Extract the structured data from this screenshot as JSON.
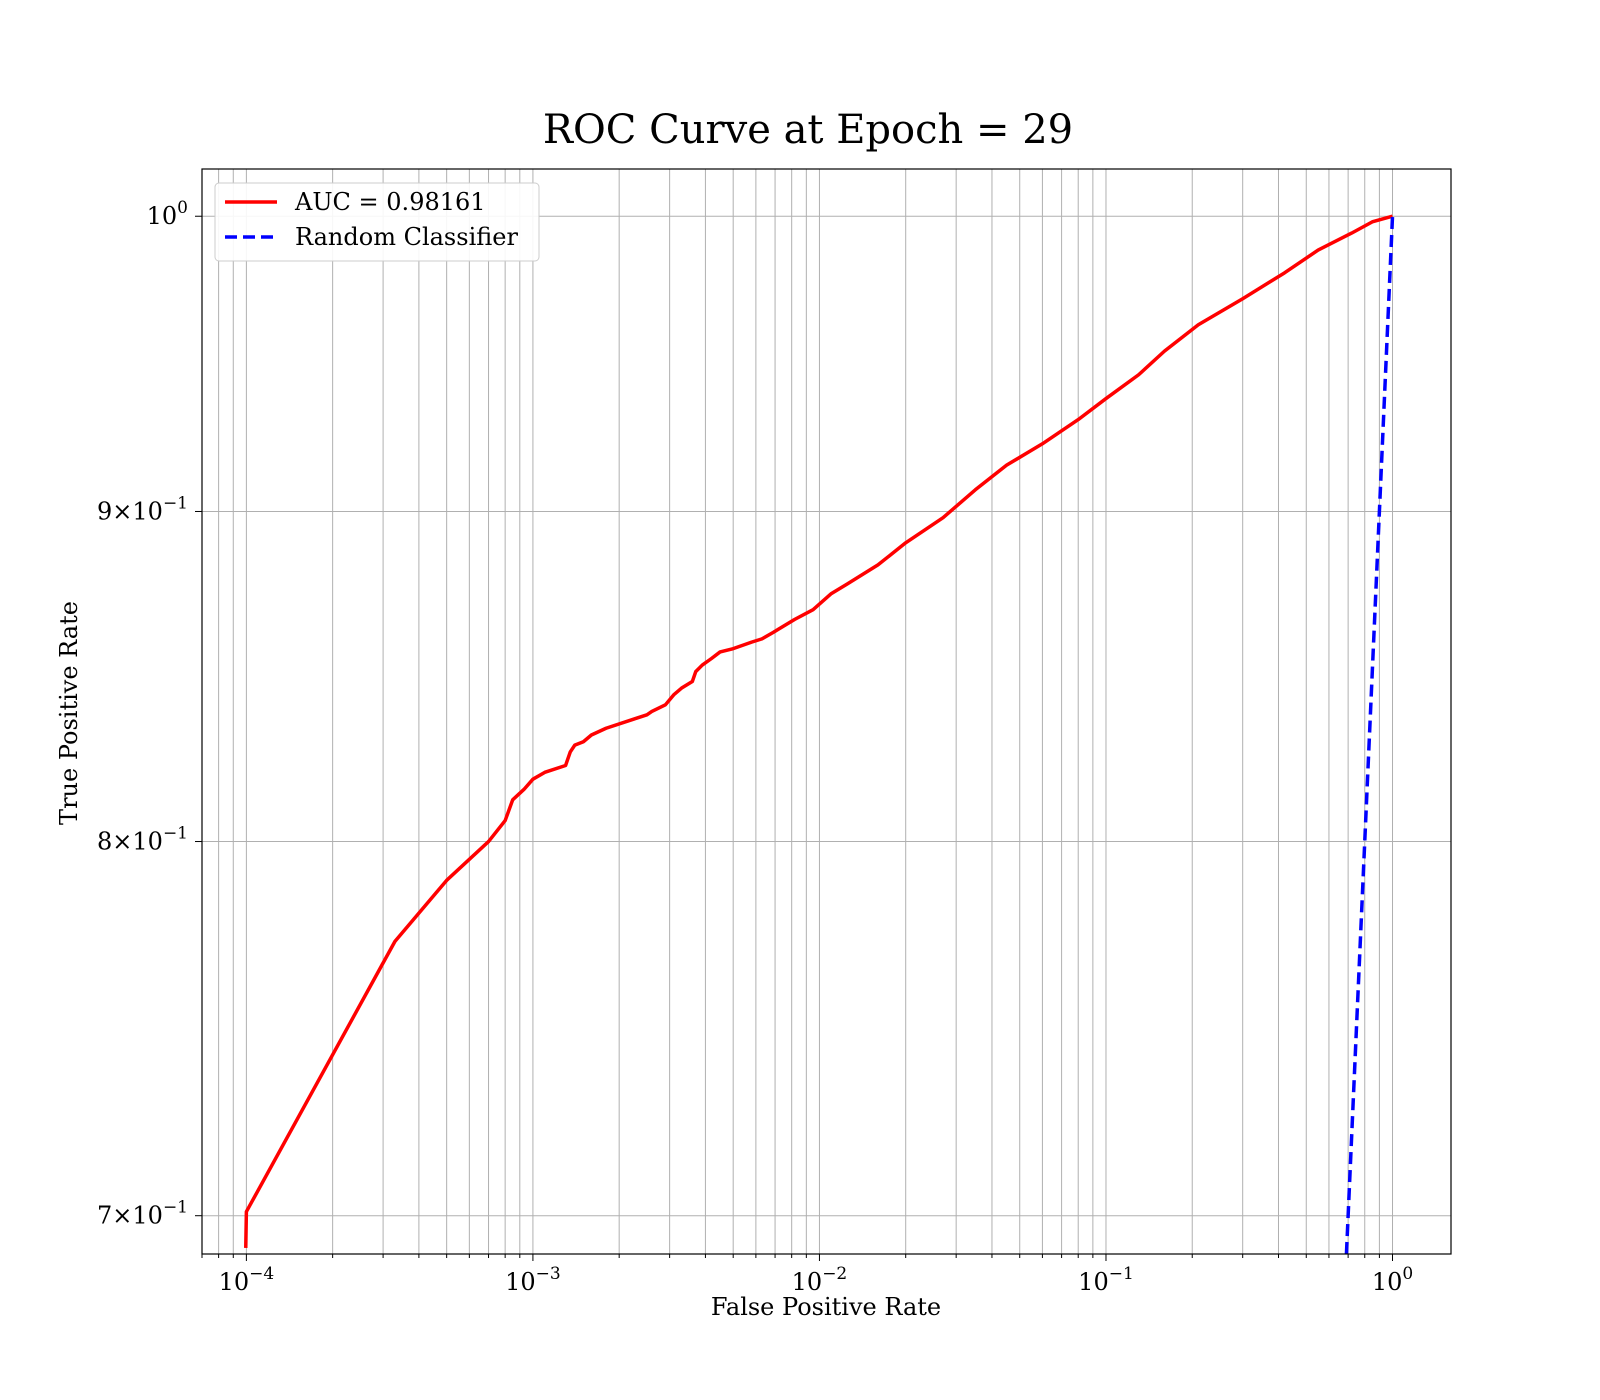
{
  "chart_data": {
    "type": "line",
    "title": "ROC Curve at Epoch = 29",
    "xlabel": "False Positive Rate",
    "ylabel": "True Positive Rate",
    "xscale": "log",
    "yscale": "log",
    "xlim": [
      7e-05,
      1.6
    ],
    "ylim": [
      0.6905,
      1.017
    ],
    "grid": true,
    "grid_minor": true,
    "legend_position": "top-left",
    "x_ticks": [
      {
        "base": "10",
        "exp": "−4",
        "value": 0.0001
      },
      {
        "base": "10",
        "exp": "−3",
        "value": 0.001
      },
      {
        "base": "10",
        "exp": "−2",
        "value": 0.01
      },
      {
        "base": "10",
        "exp": "−1",
        "value": 0.1
      },
      {
        "base": "10",
        "exp": "0",
        "value": 1
      }
    ],
    "y_ticks": [
      {
        "mant": "7",
        "base": "10",
        "exp": "−1",
        "value": 0.7
      },
      {
        "mant": "8",
        "base": "10",
        "exp": "−1",
        "value": 0.8
      },
      {
        "mant": "9",
        "base": "10",
        "exp": "−1",
        "value": 0.9
      },
      {
        "mant": "",
        "base": "10",
        "exp": "0",
        "value": 1.0
      }
    ],
    "series": [
      {
        "name": "AUC = 0.98161",
        "color": "#ff0000",
        "style": "solid",
        "x": [
          9.95e-05,
          0.0001,
          0.00033,
          0.0005,
          0.0007,
          0.0008,
          0.00085,
          0.00093,
          0.001,
          0.0011,
          0.0013,
          0.00135,
          0.0014,
          0.0015,
          0.0016,
          0.0018,
          0.0023,
          0.0025,
          0.0026,
          0.0029,
          0.0031,
          0.0033,
          0.0036,
          0.0037,
          0.0039,
          0.0042,
          0.0045,
          0.005,
          0.0058,
          0.0063,
          0.0069,
          0.0072,
          0.0082,
          0.0095,
          0.011,
          0.0125,
          0.016,
          0.02,
          0.027,
          0.035,
          0.045,
          0.06,
          0.08,
          0.1,
          0.13,
          0.16,
          0.21,
          0.3,
          0.42,
          0.55,
          0.72,
          0.85,
          1.0
        ],
        "y": [
          0.692,
          0.701,
          0.772,
          0.789,
          0.8,
          0.806,
          0.812,
          0.815,
          0.818,
          0.82,
          0.822,
          0.826,
          0.828,
          0.829,
          0.831,
          0.833,
          0.836,
          0.837,
          0.838,
          0.84,
          0.843,
          0.845,
          0.847,
          0.85,
          0.852,
          0.854,
          0.856,
          0.857,
          0.859,
          0.86,
          0.862,
          0.863,
          0.866,
          0.869,
          0.874,
          0.877,
          0.883,
          0.89,
          0.898,
          0.907,
          0.915,
          0.922,
          0.93,
          0.937,
          0.945,
          0.953,
          0.962,
          0.971,
          0.98,
          0.988,
          0.994,
          0.998,
          1.0
        ]
      },
      {
        "name": "Random Classifier",
        "color": "#0000ff",
        "style": "dashed",
        "x": [
          0.6905,
          0.75,
          0.8,
          0.85,
          0.9,
          0.95,
          1.0
        ],
        "y": [
          0.6905,
          0.75,
          0.8,
          0.85,
          0.9,
          0.95,
          1.0
        ]
      }
    ]
  }
}
